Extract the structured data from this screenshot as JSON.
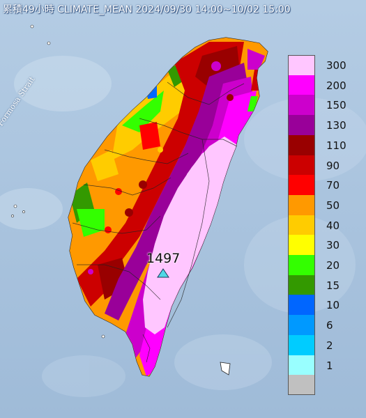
{
  "title": "累積49小時 CLIMATE_MEAN 2024/09/30 14:00~10/02 15:00",
  "strait_label": "Formosa Strait",
  "max_station_value": "1497",
  "colors": {
    "sea": "#a9c4df",
    "land": "#b9ceb0",
    "marker": "#4fd8e6"
  },
  "legend": [
    {
      "label": "300",
      "color": "#ffc6ff"
    },
    {
      "label": "200",
      "color": "#ff00ff"
    },
    {
      "label": "150",
      "color": "#cc00cc"
    },
    {
      "label": "130",
      "color": "#990099"
    },
    {
      "label": "110",
      "color": "#990000"
    },
    {
      "label": "90",
      "color": "#cc0000"
    },
    {
      "label": "70",
      "color": "#ff0000"
    },
    {
      "label": "50",
      "color": "#ff9900"
    },
    {
      "label": "40",
      "color": "#ffcc00"
    },
    {
      "label": "30",
      "color": "#ffff00"
    },
    {
      "label": "20",
      "color": "#33ff00"
    },
    {
      "label": "15",
      "color": "#339900"
    },
    {
      "label": "10",
      "color": "#0066ff"
    },
    {
      "label": "6",
      "color": "#0099ff"
    },
    {
      "label": "2",
      "color": "#00ccff"
    },
    {
      "label": "1",
      "color": "#99ffff"
    },
    {
      "label": "",
      "color": "#c0c0c0"
    }
  ]
}
